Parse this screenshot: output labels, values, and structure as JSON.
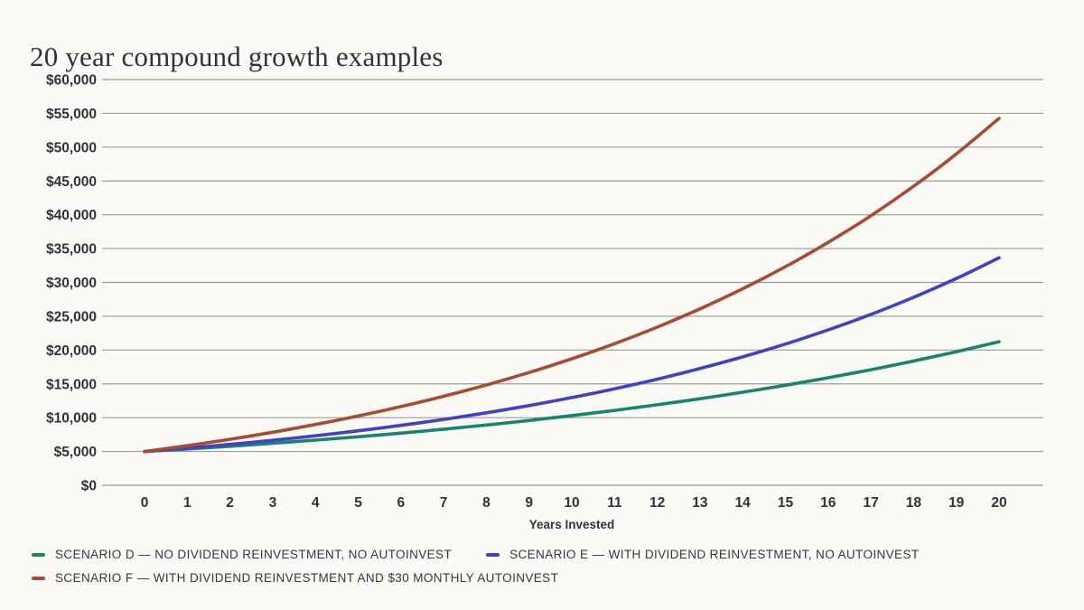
{
  "title": "20 year compound growth examples",
  "colors": {
    "background": "#fbfaf6",
    "gridline": "#9a9a9c",
    "tick_text": "#2e3338",
    "title_text": "#2e343a",
    "legend_text": "#33383d"
  },
  "chart_data": {
    "type": "line",
    "title": "20 year compound growth examples",
    "xlabel": "Years Invested",
    "ylabel": "",
    "ylim": [
      0,
      60000
    ],
    "ytick_step": 5000,
    "ytick_labels": [
      "$0",
      "$5,000",
      "$10,000",
      "$15,000",
      "$20,000",
      "$25,000",
      "$30,000",
      "$35,000",
      "$40,000",
      "$45,000",
      "$50,000",
      "$55,000",
      "$60,000"
    ],
    "x": [
      0,
      1,
      2,
      3,
      4,
      5,
      6,
      7,
      8,
      9,
      10,
      11,
      12,
      13,
      14,
      15,
      16,
      17,
      18,
      19,
      20
    ],
    "xtick_labels": [
      "0",
      "1",
      "2",
      "3",
      "4",
      "5",
      "6",
      "7",
      "8",
      "9",
      "10",
      "11",
      "12",
      "13",
      "14",
      "15",
      "16",
      "17",
      "18",
      "19",
      "20"
    ],
    "grid": true,
    "legend_position": "bottom",
    "series": [
      {
        "id": "scenario-d",
        "name": "SCENARIO D — NO DIVIDEND REINVESTMENT, NO AUTOINVEST",
        "color": "#15856b",
        "values": [
          5000,
          5375,
          5778,
          6211,
          6677,
          7178,
          7716,
          8295,
          8917,
          9586,
          10305,
          11078,
          11909,
          12802,
          13762,
          14794,
          15904,
          17097,
          18379,
          19757,
          21239
        ]
      },
      {
        "id": "scenario-e",
        "name": "SCENARIO E — WITH DIVIDEND REINVESTMENT, NO AUTOINVEST",
        "color": "#4240c7",
        "values": [
          5000,
          5500,
          6050,
          6655,
          7321,
          8053,
          8858,
          9744,
          10718,
          11790,
          12969,
          14266,
          15692,
          17261,
          18987,
          20886,
          22975,
          25272,
          27800,
          30580,
          33637
        ]
      },
      {
        "id": "scenario-f",
        "name": "SCENARIO F — WITH DIVIDEND REINVESTMENT AND $30 MONTHLY AUTOINVEST",
        "color": "#a94b2f",
        "values": [
          5000,
          5860,
          6806,
          7847,
          8991,
          10250,
          11635,
          13159,
          14835,
          16678,
          18706,
          20937,
          23390,
          26090,
          29058,
          32324,
          35917,
          39868,
          44215,
          48997,
          54256
        ]
      }
    ]
  }
}
